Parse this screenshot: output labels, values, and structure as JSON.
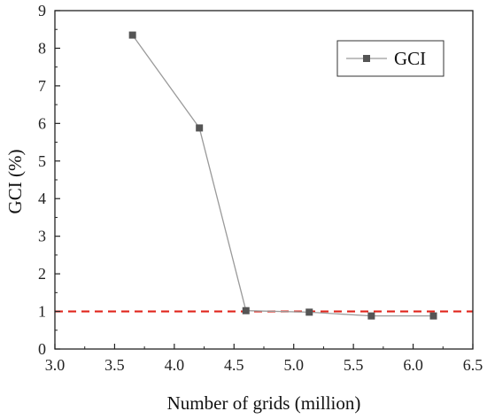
{
  "chart_data": {
    "type": "line",
    "title": "",
    "xlabel": "Number of grids (million)",
    "ylabel": "GCI (%)",
    "xlim": [
      3.0,
      6.5
    ],
    "ylim": [
      0,
      9
    ],
    "x_ticks": [
      "3.0",
      "3.5",
      "4.0",
      "4.5",
      "5.0",
      "5.5",
      "6.0",
      "6.5"
    ],
    "y_ticks": [
      "0",
      "1",
      "2",
      "3",
      "4",
      "5",
      "6",
      "7",
      "8",
      "9"
    ],
    "grid": false,
    "legend": {
      "placement": "top-right",
      "entries": [
        "GCI"
      ]
    },
    "series": [
      {
        "name": "GCI",
        "marker": "square",
        "line_color": "#9a9a9a",
        "marker_color": "#555555",
        "x": [
          3.65,
          4.21,
          4.6,
          5.13,
          5.65,
          6.17
        ],
        "y": [
          8.35,
          5.88,
          1.02,
          0.98,
          0.88,
          0.88
        ]
      }
    ],
    "reference_line": {
      "y": 1,
      "style": "dashed",
      "color": "#e0241b"
    }
  }
}
